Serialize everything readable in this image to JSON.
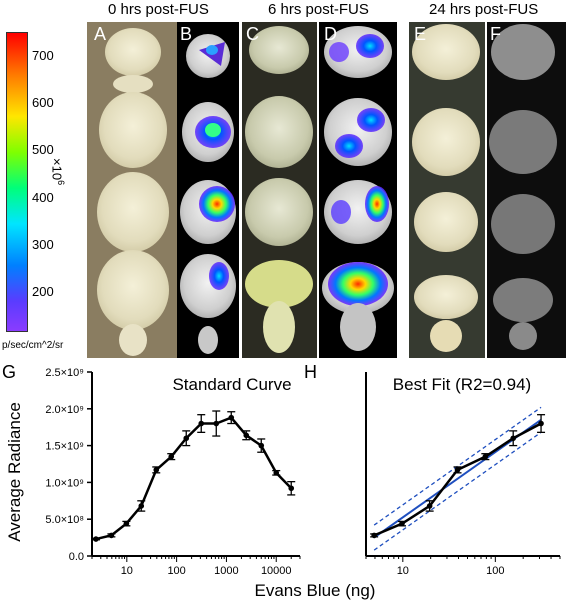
{
  "headers": {
    "col1": "0 hrs post-FUS",
    "col2": "6 hrs post-FUS",
    "col3": "24 hrs post-FUS"
  },
  "panel_labels": [
    "A",
    "B",
    "C",
    "D",
    "E",
    "F",
    "G",
    "H"
  ],
  "colorbar": {
    "ticks": [
      "700",
      "600",
      "500",
      "400",
      "300",
      "200"
    ],
    "tick_values": [
      700,
      600,
      500,
      400,
      300,
      200
    ],
    "range": [
      120,
      750
    ],
    "multiplier": "×10",
    "exponent": "6",
    "units": "p/sec/cm^2/sr",
    "colors": [
      "#ff0000",
      "#ff8800",
      "#ffee00",
      "#66ff00",
      "#00ee88",
      "#00ccff",
      "#0066ff",
      "#7b2cff"
    ]
  },
  "chart_data": [
    {
      "type": "line",
      "panel": "G",
      "title": "Standard Curve",
      "xlabel": "Evans Blue (ng)",
      "ylabel": "Average Radiance",
      "x_scale": "log",
      "xlim": [
        2,
        30000
      ],
      "ylim": [
        0,
        2500000000
      ],
      "x_ticks": [
        1,
        10,
        100,
        1000,
        10000
      ],
      "x_tick_labels": [
        "10",
        "100",
        "1000",
        "10000"
      ],
      "x_tick_values": [
        10,
        100,
        1000,
        10000
      ],
      "y_tick_labels": [
        "0.0",
        "5.0×10⁸",
        "1.0×10⁹",
        "1.5×10⁹",
        "2.0×10⁹",
        "2.5×10⁹"
      ],
      "y_tick_values": [
        0,
        500000000,
        1000000000,
        1500000000,
        2000000000,
        2500000000
      ],
      "x": [
        2.4,
        4.9,
        9.8,
        19.5,
        39,
        78,
        156,
        312,
        625,
        1250,
        2500,
        5000,
        10000,
        20000
      ],
      "y": [
        230000000,
        280000000,
        440000000,
        680000000,
        1170000000,
        1350000000,
        1600000000,
        1800000000,
        1800000000,
        1880000000,
        1640000000,
        1500000000,
        1130000000,
        920000000
      ],
      "err": [
        10000000,
        20000000,
        30000000,
        70000000,
        40000000,
        40000000,
        100000000,
        120000000,
        170000000,
        80000000,
        60000000,
        90000000,
        30000000,
        90000000
      ]
    },
    {
      "type": "line",
      "panel": "H",
      "title": "Best Fit (R2=0.94)",
      "x_scale": "log",
      "xlim": [
        4,
        500
      ],
      "ylim": [
        0,
        2500000000
      ],
      "x_tick_labels": [
        "10",
        "100"
      ],
      "x_tick_values": [
        10,
        100
      ],
      "x": [
        4.9,
        9.8,
        19.5,
        39,
        78,
        156,
        312
      ],
      "y": [
        280000000,
        440000000,
        680000000,
        1170000000,
        1350000000,
        1600000000,
        1800000000
      ],
      "err": [
        20000000,
        30000000,
        70000000,
        40000000,
        40000000,
        100000000,
        120000000
      ],
      "fit": [
        [
          4.9,
          250000000
        ],
        [
          312,
          1850000000
        ]
      ],
      "ci_low": [
        [
          4.9,
          80000000
        ],
        [
          312,
          1680000000
        ]
      ],
      "ci_high": [
        [
          4.9,
          420000000
        ],
        [
          312,
          2020000000
        ]
      ]
    }
  ]
}
